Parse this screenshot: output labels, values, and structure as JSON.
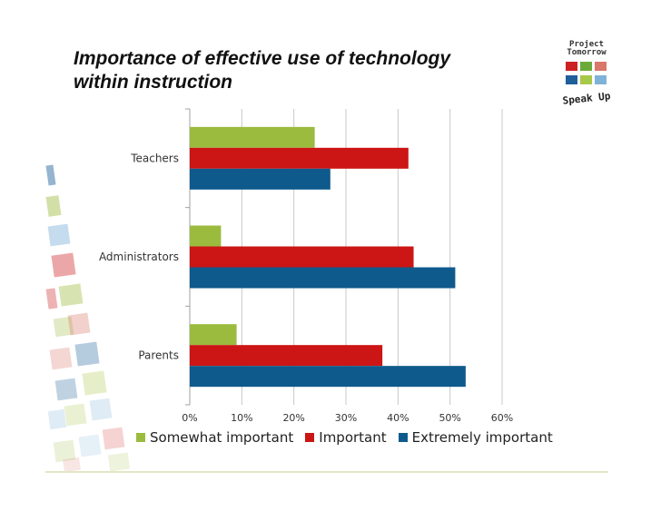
{
  "slide": {
    "title_line1": "Importance of effective use of technology",
    "title_line2": "within instruction"
  },
  "logo": {
    "line1": "Project",
    "line2": "Tomorrow",
    "tagline": "Speak Up",
    "cell_colors": [
      "#cc2222",
      "#6aaa3a",
      "#d9776a",
      "#1f5f9a",
      "#a8c84a",
      "#7fb2d9"
    ]
  },
  "chart_data": {
    "type": "bar",
    "orientation": "horizontal",
    "categories": [
      "Teachers",
      "Administrators",
      "Parents"
    ],
    "series": [
      {
        "name": "Somewhat important",
        "color": "#9bbb3f",
        "values": [
          24,
          6,
          9
        ]
      },
      {
        "name": "Important",
        "color": "#cc1515",
        "values": [
          42,
          43,
          37
        ]
      },
      {
        "name": "Extremely important",
        "color": "#0f5a8c",
        "values": [
          27,
          51,
          53
        ]
      }
    ],
    "xlim": [
      0,
      60
    ],
    "xticks": [
      0,
      10,
      20,
      30,
      40,
      50,
      60
    ],
    "tick_suffix": "%",
    "grid": true,
    "legend": "bottom",
    "title": "",
    "xlabel": "",
    "ylabel": ""
  }
}
